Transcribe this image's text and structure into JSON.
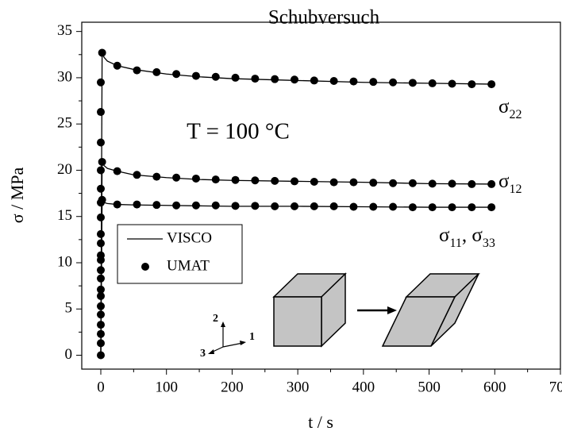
{
  "chart_data": {
    "type": "line",
    "title": "Schubversuch",
    "x_label": "t / s",
    "y_label": "σ / MPa",
    "annotation": "T = 100 °C",
    "triad_labels": [
      "1",
      "2",
      "3"
    ],
    "xlim": [
      -29,
      700
    ],
    "ylim": [
      -1.5,
      36
    ],
    "xticks": [
      0,
      100,
      200,
      300,
      400,
      500,
      600,
      700
    ],
    "xminorticks": [
      50,
      150,
      250,
      350,
      450,
      550,
      650
    ],
    "yticks": [
      0,
      5,
      10,
      15,
      20,
      25,
      30,
      35
    ],
    "yminorticks": [
      2.5,
      7.5,
      12.5,
      17.5,
      22.5,
      27.5,
      32.5
    ],
    "series": [
      {
        "name": "VISCO",
        "marker": "line",
        "color": "#000000"
      },
      {
        "name": "UMAT",
        "marker": "circle",
        "color": "#000000"
      }
    ],
    "curves": [
      {
        "label": [
          "σ",
          "22"
        ],
        "line_x": [
          0,
          2,
          5,
          10,
          25,
          50,
          100,
          150,
          200,
          300,
          400,
          500,
          600
        ],
        "line_values": [
          0,
          32.7,
          32.2,
          31.8,
          31.3,
          30.9,
          30.4,
          30.1,
          29.9,
          29.7,
          29.5,
          29.4,
          29.3
        ],
        "marker_x": [
          0,
          0,
          0,
          0,
          0,
          0,
          0,
          0,
          0,
          0,
          0,
          0,
          0,
          0,
          0,
          0,
          0,
          0,
          0,
          0,
          0,
          2,
          25,
          55,
          85,
          115,
          145,
          175,
          205,
          235,
          265,
          295,
          325,
          355,
          385,
          415,
          445,
          475,
          505,
          535,
          565,
          595
        ],
        "marker_values": [
          0,
          1.3,
          2.3,
          3.3,
          4.4,
          5.3,
          6.4,
          7.1,
          8.3,
          9.2,
          10.3,
          10.8,
          12.1,
          13.1,
          14.9,
          16.5,
          18.0,
          20.0,
          23.0,
          26.3,
          29.5,
          32.7,
          31.3,
          30.8,
          30.6,
          30.4,
          30.2,
          30.1,
          30.0,
          29.9,
          29.85,
          29.8,
          29.7,
          29.65,
          29.6,
          29.55,
          29.5,
          29.45,
          29.4,
          29.35,
          29.3,
          29.3
        ]
      },
      {
        "label": [
          "σ",
          "12"
        ],
        "line_x": [
          0,
          2,
          5,
          10,
          25,
          50,
          100,
          150,
          200,
          300,
          400,
          500,
          600
        ],
        "line_values": [
          0,
          20.9,
          20.5,
          20.2,
          19.9,
          19.5,
          19.2,
          19.0,
          18.9,
          18.8,
          18.7,
          18.55,
          18.5
        ],
        "marker_x": [
          2,
          25,
          55,
          85,
          115,
          145,
          175,
          205,
          235,
          265,
          295,
          325,
          355,
          385,
          415,
          445,
          475,
          505,
          535,
          565,
          595
        ],
        "marker_values": [
          20.9,
          19.9,
          19.5,
          19.3,
          19.2,
          19.1,
          19.0,
          18.95,
          18.9,
          18.85,
          18.8,
          18.75,
          18.7,
          18.7,
          18.65,
          18.6,
          18.6,
          18.55,
          18.55,
          18.5,
          18.5
        ]
      },
      {
        "label": [
          "σ",
          "11",
          ", σ",
          "33"
        ],
        "line_x": [
          0,
          2,
          5,
          10,
          25,
          50,
          100,
          150,
          200,
          300,
          400,
          500,
          600
        ],
        "line_values": [
          0,
          16.8,
          16.5,
          16.4,
          16.3,
          16.25,
          16.2,
          16.15,
          16.1,
          16.1,
          16.05,
          16.0,
          16.0
        ],
        "marker_x": [
          2,
          25,
          55,
          85,
          115,
          145,
          175,
          205,
          235,
          265,
          295,
          325,
          355,
          385,
          415,
          445,
          475,
          505,
          535,
          565,
          595
        ],
        "marker_values": [
          16.8,
          16.3,
          16.3,
          16.25,
          16.2,
          16.2,
          16.2,
          16.15,
          16.15,
          16.1,
          16.1,
          16.1,
          16.1,
          16.05,
          16.05,
          16.05,
          16.0,
          16.0,
          16.0,
          16.0,
          16.0
        ]
      }
    ]
  }
}
